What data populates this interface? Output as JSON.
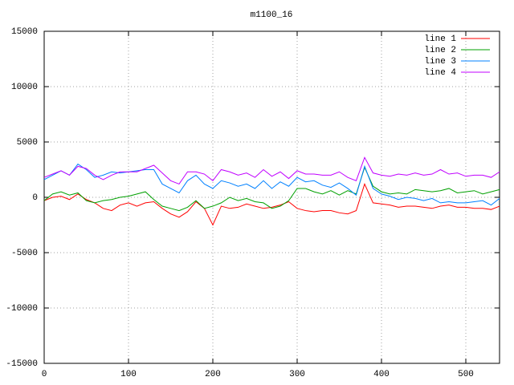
{
  "chart_data": {
    "type": "line",
    "title": "m1100_16",
    "x": [
      0,
      10,
      20,
      30,
      40,
      50,
      60,
      70,
      80,
      90,
      100,
      110,
      120,
      130,
      140,
      150,
      160,
      170,
      180,
      190,
      200,
      210,
      220,
      230,
      240,
      250,
      260,
      270,
      280,
      290,
      300,
      310,
      320,
      330,
      340,
      350,
      360,
      370,
      380,
      390,
      400,
      410,
      420,
      430,
      440,
      450,
      460,
      470,
      480,
      490,
      500,
      510,
      520,
      530,
      540
    ],
    "series": [
      {
        "name": "line 1",
        "color": "#ff0000",
        "values": [
          -300,
          0,
          100,
          -200,
          300,
          -200,
          -500,
          -1000,
          -1200,
          -700,
          -500,
          -800,
          -500,
          -400,
          -1000,
          -1500,
          -1800,
          -1300,
          -400,
          -1000,
          -2500,
          -800,
          -1000,
          -900,
          -600,
          -800,
          -1000,
          -900,
          -700,
          -400,
          -1000,
          -1200,
          -1300,
          -1200,
          -1200,
          -1400,
          -1500,
          -1200,
          1200,
          -500,
          -600,
          -700,
          -900,
          -800,
          -800,
          -900,
          -1000,
          -800,
          -700,
          -900,
          -900,
          -1000,
          -1000,
          -1100,
          -800
        ]
      },
      {
        "name": "line 2",
        "color": "#00a000",
        "values": [
          -300,
          300,
          500,
          200,
          400,
          -300,
          -500,
          -300,
          -200,
          0,
          100,
          300,
          500,
          -200,
          -800,
          -1000,
          -1200,
          -900,
          -300,
          -1000,
          -800,
          -500,
          0,
          -300,
          -100,
          -400,
          -500,
          -1000,
          -800,
          -300,
          800,
          800,
          500,
          300,
          600,
          200,
          600,
          300,
          2700,
          1000,
          500,
          300,
          400,
          300,
          700,
          600,
          500,
          600,
          800,
          400,
          500,
          600,
          300,
          500,
          700
        ]
      },
      {
        "name": "line 3",
        "color": "#0080ff",
        "values": [
          1600,
          2000,
          2400,
          2000,
          3000,
          2500,
          1800,
          2000,
          2300,
          2200,
          2300,
          2400,
          2500,
          2500,
          1200,
          800,
          400,
          1500,
          2000,
          1200,
          800,
          1500,
          1300,
          1000,
          1200,
          800,
          1500,
          800,
          1400,
          1000,
          1800,
          1400,
          1500,
          1100,
          900,
          1300,
          800,
          200,
          2800,
          800,
          300,
          100,
          -200,
          0,
          -100,
          -300,
          -100,
          -500,
          -400,
          -500,
          -500,
          -400,
          -300,
          -700,
          -100
        ]
      },
      {
        "name": "line 4",
        "color": "#c000ff",
        "values": [
          1800,
          2100,
          2400,
          2000,
          2800,
          2600,
          2000,
          1600,
          2000,
          2300,
          2300,
          2300,
          2600,
          2900,
          2200,
          1500,
          1200,
          2300,
          2300,
          2100,
          1500,
          2500,
          2300,
          2000,
          2200,
          1800,
          2500,
          1900,
          2300,
          1700,
          2400,
          2100,
          2100,
          2000,
          2000,
          2300,
          1800,
          1500,
          3600,
          2200,
          2000,
          1900,
          2100,
          2000,
          2200,
          2000,
          2100,
          2500,
          2100,
          2200,
          1900,
          2000,
          2000,
          1800,
          2300
        ]
      }
    ],
    "xlim": [
      0,
      540
    ],
    "xticks": [
      0,
      100,
      200,
      300,
      400,
      500
    ],
    "ylim": [
      -15000,
      15000
    ],
    "yticks": [
      -15000,
      -10000,
      -5000,
      0,
      5000,
      10000,
      15000
    ],
    "grid": true,
    "legend": "top-right"
  }
}
